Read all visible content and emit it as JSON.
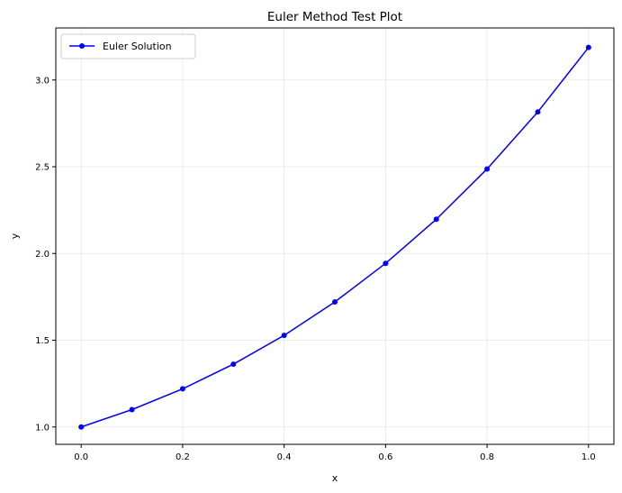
{
  "chart_data": {
    "type": "line",
    "title": "Euler Method Test Plot",
    "xlabel": "x",
    "ylabel": "y",
    "xlim": [
      -0.05,
      1.05
    ],
    "ylim": [
      0.9,
      3.3
    ],
    "x_ticks": [
      "0.0",
      "0.2",
      "0.4",
      "0.6",
      "0.8",
      "1.0"
    ],
    "y_ticks": [
      "1.0",
      "1.5",
      "2.0",
      "2.5",
      "3.0"
    ],
    "grid": true,
    "legend_position": "top-left",
    "series": [
      {
        "name": "Euler Solution",
        "color": "#0000ff",
        "marker": "circle",
        "x": [
          0.0,
          0.1,
          0.2,
          0.3,
          0.4,
          0.5,
          0.6,
          0.7,
          0.8,
          0.9,
          1.0
        ],
        "y": [
          1.0,
          1.1,
          1.22,
          1.362,
          1.5282,
          1.721,
          1.9431,
          2.1974,
          2.4872,
          2.8159,
          3.1875
        ]
      }
    ]
  }
}
